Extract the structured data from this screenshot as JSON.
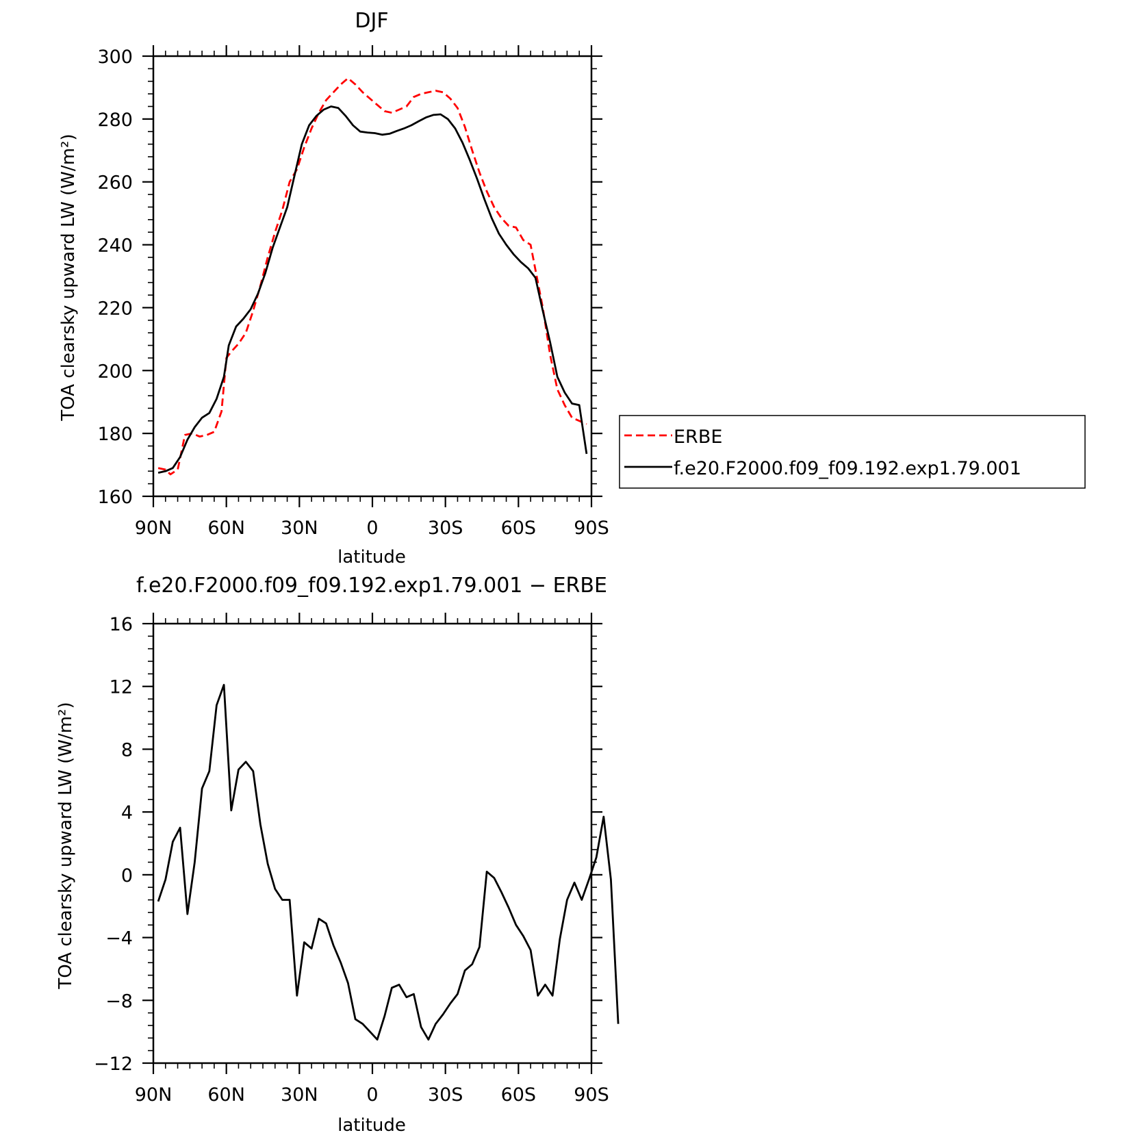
{
  "chart_data": [
    {
      "type": "line",
      "title": "DJF",
      "xlabel": "latitude",
      "ylabel": "TOA clearsky upward LW (W/m²)",
      "ylim": [
        160,
        300
      ],
      "xlim": [
        90,
        -90
      ],
      "x_ticks": [
        {
          "value": 90,
          "label": "90N"
        },
        {
          "value": 60,
          "label": "60N"
        },
        {
          "value": 30,
          "label": "30N"
        },
        {
          "value": 0,
          "label": "0"
        },
        {
          "value": -30,
          "label": "30S"
        },
        {
          "value": -60,
          "label": "60S"
        },
        {
          "value": -90,
          "label": "90S"
        }
      ],
      "y_ticks": [
        160,
        180,
        200,
        220,
        240,
        260,
        280,
        300
      ],
      "legend": {
        "placement": "right"
      },
      "series": [
        {
          "name": "ERBE",
          "color": "#ff0000",
          "dash": "dashed",
          "points": [
            [
              88,
              169
            ],
            [
              85,
              168.5
            ],
            [
              83,
              167
            ],
            [
              80,
              168.5
            ],
            [
              77,
              179.5
            ],
            [
              74,
              180
            ],
            [
              71,
              179
            ],
            [
              68,
              179.5
            ],
            [
              65,
              180.5
            ],
            [
              62,
              187
            ],
            [
              60,
              204
            ],
            [
              58,
              206
            ],
            [
              55,
              208.5
            ],
            [
              52,
              212
            ],
            [
              49,
              219
            ],
            [
              46,
              227
            ],
            [
              43,
              236
            ],
            [
              40,
              244
            ],
            [
              37,
              251
            ],
            [
              34,
              260
            ],
            [
              31,
              264
            ],
            [
              28,
              271
            ],
            [
              25,
              277
            ],
            [
              22,
              282
            ],
            [
              19,
              286
            ],
            [
              16,
              288.5
            ],
            [
              13,
              291
            ],
            [
              10,
              293
            ],
            [
              7,
              291
            ],
            [
              4,
              288.5
            ],
            [
              1,
              286.5
            ],
            [
              -2,
              284.5
            ],
            [
              -5,
              282.5
            ],
            [
              -8,
              282
            ],
            [
              -11,
              283
            ],
            [
              -14,
              284
            ],
            [
              -17,
              287
            ],
            [
              -20,
              288
            ],
            [
              -23,
              288.5
            ],
            [
              -26,
              289
            ],
            [
              -29,
              288.5
            ],
            [
              -32,
              286.5
            ],
            [
              -35,
              283.5
            ],
            [
              -38,
              277.5
            ],
            [
              -41,
              270
            ],
            [
              -44,
              263
            ],
            [
              -47,
              257
            ],
            [
              -50,
              252
            ],
            [
              -53,
              248.5
            ],
            [
              -56,
              246
            ],
            [
              -59,
              245.5
            ],
            [
              -62,
              241.5
            ],
            [
              -65,
              240
            ],
            [
              -67,
              232
            ],
            [
              -70,
              220
            ],
            [
              -73,
              205
            ],
            [
              -76,
              194
            ],
            [
              -79,
              189
            ],
            [
              -82,
              185
            ],
            [
              -85,
              184
            ],
            [
              -88,
              183
            ]
          ]
        },
        {
          "name": "f.e20.F2000.f09_f09.192.exp1.79.001",
          "color": "#000000",
          "dash": "solid",
          "points": [
            [
              88,
              167.5
            ],
            [
              85,
              168
            ],
            [
              82,
              169
            ],
            [
              79,
              172.5
            ],
            [
              76,
              178
            ],
            [
              73,
              182
            ],
            [
              70,
              185
            ],
            [
              67,
              186.5
            ],
            [
              64,
              191
            ],
            [
              61,
              198
            ],
            [
              59,
              208
            ],
            [
              56,
              214
            ],
            [
              53,
              216.5
            ],
            [
              50,
              219.5
            ],
            [
              47,
              224.5
            ],
            [
              44,
              231
            ],
            [
              41,
              239
            ],
            [
              38,
              245.5
            ],
            [
              35,
              252
            ],
            [
              32,
              262
            ],
            [
              29,
              272
            ],
            [
              26,
              278
            ],
            [
              23,
              281
            ],
            [
              20,
              283
            ],
            [
              17,
              284
            ],
            [
              14,
              283.5
            ],
            [
              11,
              281
            ],
            [
              8,
              278
            ],
            [
              5,
              276
            ],
            [
              2,
              275.7
            ],
            [
              -1,
              275.5
            ],
            [
              -4,
              275
            ],
            [
              -7,
              275.3
            ],
            [
              -10,
              276.2
            ],
            [
              -13,
              277
            ],
            [
              -16,
              278
            ],
            [
              -19,
              279.3
            ],
            [
              -22,
              280.5
            ],
            [
              -25,
              281.3
            ],
            [
              -28,
              281.5
            ],
            [
              -31,
              280
            ],
            [
              -34,
              277
            ],
            [
              -37,
              272.5
            ],
            [
              -40,
              267
            ],
            [
              -43,
              261
            ],
            [
              -46,
              254.5
            ],
            [
              -49,
              248.5
            ],
            [
              -52,
              243.5
            ],
            [
              -55,
              240
            ],
            [
              -58,
              237
            ],
            [
              -61,
              234.5
            ],
            [
              -64,
              232.5
            ],
            [
              -67,
              229.5
            ],
            [
              -70,
              219
            ],
            [
              -73,
              209
            ],
            [
              -76,
              198
            ],
            [
              -79,
              193
            ],
            [
              -82,
              189.5
            ],
            [
              -85,
              189
            ],
            [
              -88,
              173.5
            ]
          ]
        }
      ]
    },
    {
      "type": "line",
      "title": "f.e20.F2000.f09_f09.192.exp1.79.001 − ERBE",
      "xlabel": "latitude",
      "ylabel": "TOA clearsky upward LW (W/m²)",
      "ylim": [
        -12,
        16
      ],
      "xlim": [
        90,
        -90
      ],
      "x_ticks": [
        {
          "value": 90,
          "label": "90N"
        },
        {
          "value": 60,
          "label": "60N"
        },
        {
          "value": 30,
          "label": "30N"
        },
        {
          "value": 0,
          "label": "0"
        },
        {
          "value": -30,
          "label": "30S"
        },
        {
          "value": -60,
          "label": "60S"
        },
        {
          "value": -90,
          "label": "90S"
        }
      ],
      "y_ticks": [
        {
          "value": 16,
          "label": "16"
        },
        {
          "value": 12,
          "label": "12"
        },
        {
          "value": 8,
          "label": "8"
        },
        {
          "value": 4,
          "label": "4"
        },
        {
          "value": 0,
          "label": "0"
        },
        {
          "value": -4,
          "label": "−4"
        },
        {
          "value": -8,
          "label": "−8"
        },
        {
          "value": -12,
          "label": "−12"
        }
      ],
      "series": [
        {
          "color": "#000000",
          "dash": "solid",
          "points": [
            [
              88,
              -1.7
            ],
            [
              85,
              -0.3
            ],
            [
              82,
              2.1
            ],
            [
              79,
              3.0
            ],
            [
              76,
              -2.5
            ],
            [
              73,
              0.8
            ],
            [
              70,
              5.5
            ],
            [
              67,
              6.6
            ],
            [
              64,
              10.8
            ],
            [
              61,
              12.1
            ],
            [
              58,
              4.1
            ],
            [
              55,
              6.7
            ],
            [
              52,
              7.2
            ],
            [
              49,
              6.6
            ],
            [
              46,
              3.2
            ],
            [
              43,
              0.7
            ],
            [
              40,
              -0.9
            ],
            [
              37,
              -1.6
            ],
            [
              34,
              -1.6
            ],
            [
              31,
              -7.7
            ],
            [
              28,
              -4.3
            ],
            [
              25,
              -4.7
            ],
            [
              22,
              -2.8
            ],
            [
              19,
              -3.1
            ],
            [
              16,
              -4.5
            ],
            [
              13,
              -5.6
            ],
            [
              10,
              -6.9
            ],
            [
              7,
              -9.2
            ],
            [
              4,
              -9.5
            ],
            [
              1,
              -10.0
            ],
            [
              -2,
              -10.5
            ],
            [
              -5,
              -9.0
            ],
            [
              -8,
              -7.2
            ],
            [
              -11,
              -7.0
            ],
            [
              -14,
              -7.8
            ],
            [
              -17,
              -7.6
            ],
            [
              -20,
              -9.7
            ],
            [
              -23,
              -10.5
            ],
            [
              -26,
              -9.5
            ],
            [
              -29,
              -8.9
            ],
            [
              -32,
              -8.2
            ],
            [
              -35,
              -7.6
            ],
            [
              -38,
              -6.1
            ],
            [
              -41,
              -5.7
            ],
            [
              -44,
              -4.6
            ],
            [
              -47,
              0.2
            ],
            [
              -50,
              -0.2
            ],
            [
              -53,
              -1.1
            ],
            [
              -56,
              -2.1
            ],
            [
              -59,
              -3.2
            ],
            [
              -62,
              -3.9
            ],
            [
              -65,
              -4.8
            ],
            [
              -68,
              -7.7
            ],
            [
              -71,
              -7.0
            ],
            [
              -74,
              -7.7
            ],
            [
              -77,
              -4.1
            ],
            [
              -80,
              -1.6
            ],
            [
              -83,
              -0.5
            ],
            [
              -86,
              -1.6
            ],
            [
              -89,
              -0.3
            ],
            [
              -92,
              1.1
            ],
            [
              -95,
              3.7
            ],
            [
              -98,
              -0.3
            ],
            [
              -101,
              -9.5
            ]
          ]
        }
      ]
    }
  ]
}
